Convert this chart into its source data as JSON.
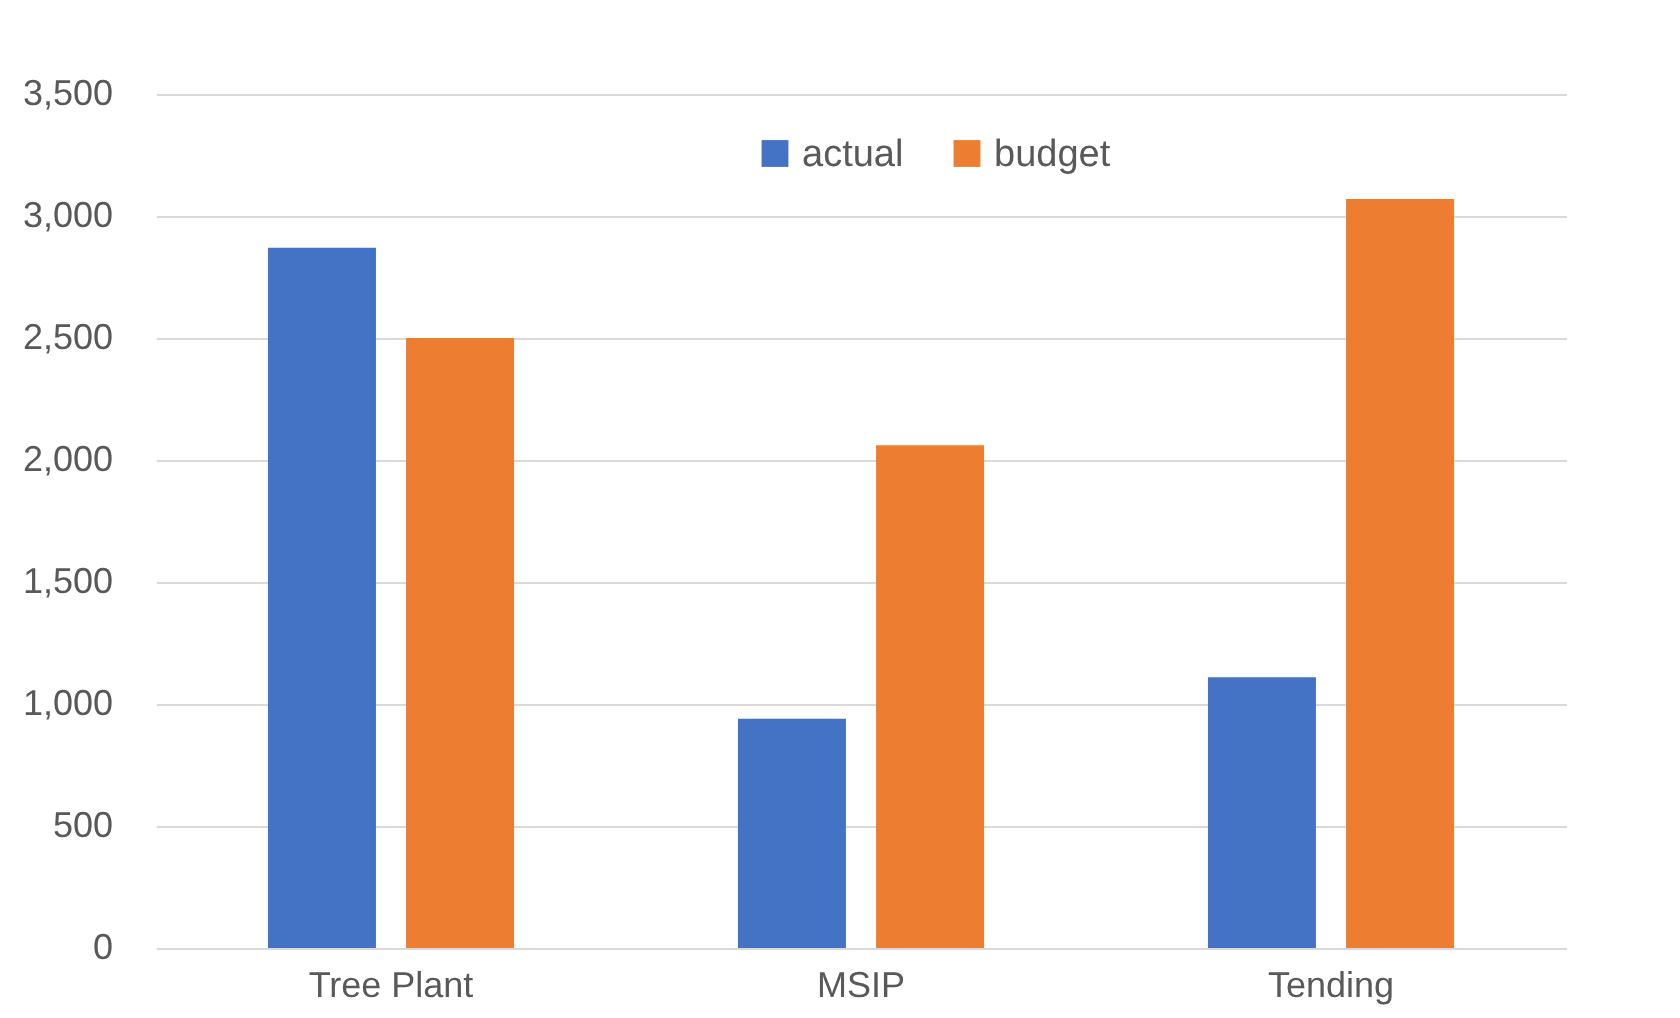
{
  "chart_data": {
    "type": "bar",
    "categories": [
      "Tree Plant",
      "MSIP",
      "Tending"
    ],
    "series": [
      {
        "name": "actual",
        "color": "#4472c4",
        "values": [
          2870,
          940,
          1110
        ]
      },
      {
        "name": "budget",
        "color": "#ed7d31",
        "values": [
          2500,
          2060,
          3070
        ]
      }
    ],
    "ylim": [
      0,
      3500
    ],
    "yticks": [
      0,
      {
        "value": 500,
        "label": "500"
      },
      {
        "value": 1000,
        "label": "1,000"
      },
      {
        "value": 1500,
        "label": "1,500"
      },
      {
        "value": 2000,
        "label": "2,000"
      },
      {
        "value": 2500,
        "label": "2,500"
      },
      {
        "value": 3000,
        "label": "3,000"
      },
      {
        "value": 3500,
        "label": "3,500"
      }
    ],
    "grid": "y",
    "legend": "top"
  }
}
